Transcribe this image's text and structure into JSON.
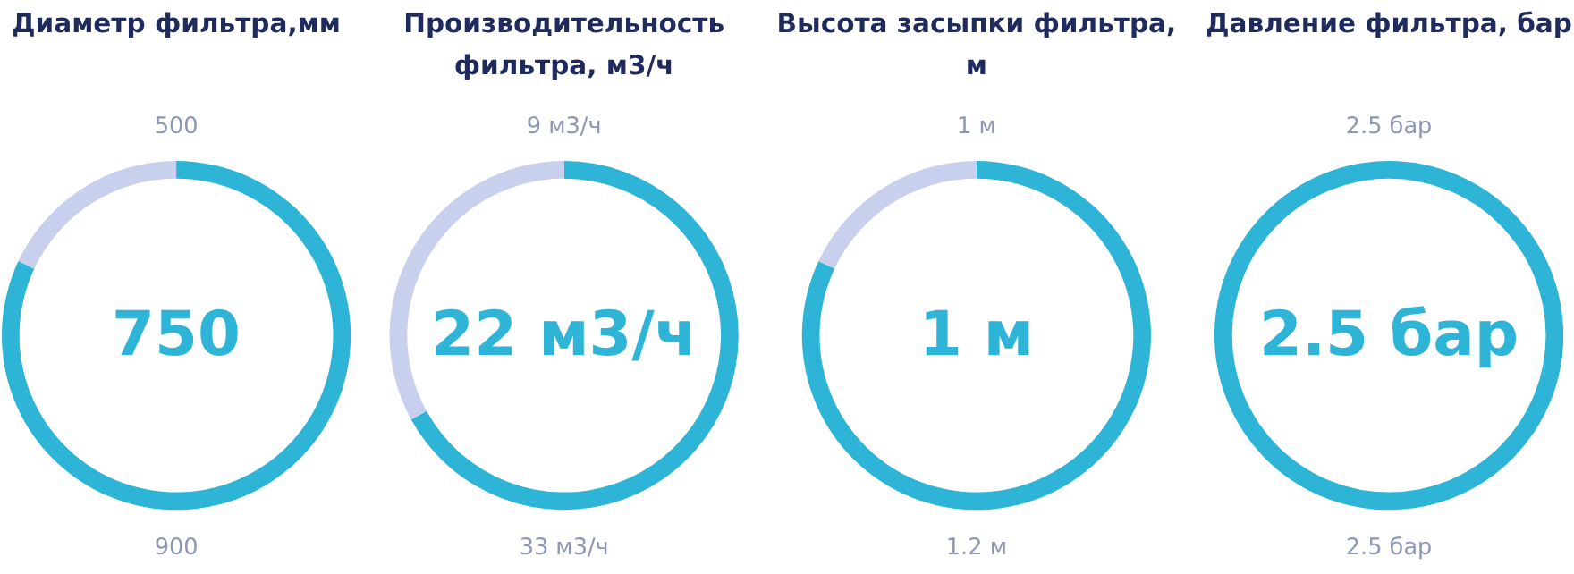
{
  "chart_data": [
    {
      "type": "donut",
      "title": "Диаметр фильтра,мм",
      "categories": [
        null,
        null
      ],
      "values": [
        82,
        18
      ],
      "colors": [
        "#2eb4d6",
        "#c8d0ee"
      ],
      "annotations": [
        "500",
        "750",
        "900"
      ]
    },
    {
      "type": "donut",
      "title": "Производительность фильтра, м3/ч",
      "categories": [
        null,
        null
      ],
      "values": [
        67,
        33
      ],
      "colors": [
        "#2eb4d6",
        "#c8d0ee"
      ],
      "annotations": [
        "9 м3/ч",
        "22 м3/ч",
        "33 м3/ч"
      ]
    },
    {
      "type": "donut",
      "title": "Высота засыпки фильтра, м",
      "categories": [
        null,
        null
      ],
      "values": [
        82,
        18
      ],
      "colors": [
        "#2eb4d6",
        "#c8d0ee"
      ],
      "annotations": [
        "1 м",
        "1 м",
        "1.2 м"
      ]
    },
    {
      "type": "donut",
      "title": "Давление фильтра, бар",
      "categories": [
        null,
        null
      ],
      "values": [
        100,
        0
      ],
      "colors": [
        "#2eb4d6",
        "#c8d0ee"
      ],
      "annotations": [
        "2.5 бар",
        "2.5 бар",
        "2.5 бар"
      ]
    }
  ]
}
